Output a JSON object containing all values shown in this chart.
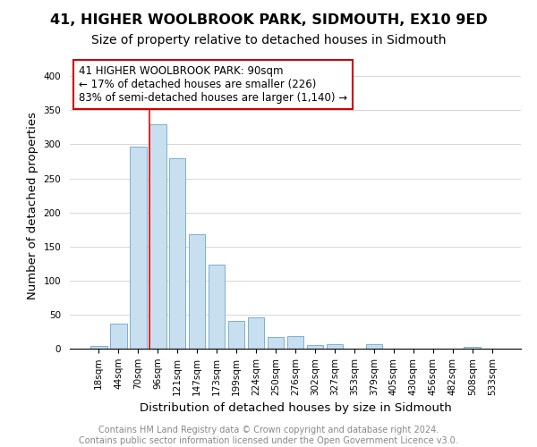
{
  "title": "41, HIGHER WOOLBROOK PARK, SIDMOUTH, EX10 9ED",
  "subtitle": "Size of property relative to detached houses in Sidmouth",
  "xlabel": "Distribution of detached houses by size in Sidmouth",
  "ylabel": "Number of detached properties",
  "bar_labels": [
    "18sqm",
    "44sqm",
    "70sqm",
    "96sqm",
    "121sqm",
    "147sqm",
    "173sqm",
    "199sqm",
    "224sqm",
    "250sqm",
    "276sqm",
    "302sqm",
    "327sqm",
    "353sqm",
    "379sqm",
    "405sqm",
    "430sqm",
    "456sqm",
    "482sqm",
    "508sqm",
    "533sqm"
  ],
  "bar_heights": [
    4,
    37,
    296,
    330,
    279,
    168,
    123,
    41,
    46,
    17,
    18,
    5,
    6,
    0,
    7,
    0,
    0,
    0,
    0,
    2,
    0
  ],
  "bar_color": "#c8dff0",
  "bar_edge_color": "#7aafd4",
  "vline_color": "red",
  "vline_position": 2.6,
  "ylim": [
    0,
    420
  ],
  "yticks": [
    0,
    50,
    100,
    150,
    200,
    250,
    300,
    350,
    400
  ],
  "annotation_text": "41 HIGHER WOOLBROOK PARK: 90sqm\n← 17% of detached houses are smaller (226)\n83% of semi-detached houses are larger (1,140) →",
  "annotation_box_color": "white",
  "annotation_box_edge_color": "#cc0000",
  "footer_text": "Contains HM Land Registry data © Crown copyright and database right 2024.\nContains public sector information licensed under the Open Government Licence v3.0.",
  "title_fontsize": 11.5,
  "subtitle_fontsize": 10,
  "axis_label_fontsize": 9.5,
  "tick_fontsize": 7.5,
  "annotation_fontsize": 8.5,
  "footer_fontsize": 7
}
